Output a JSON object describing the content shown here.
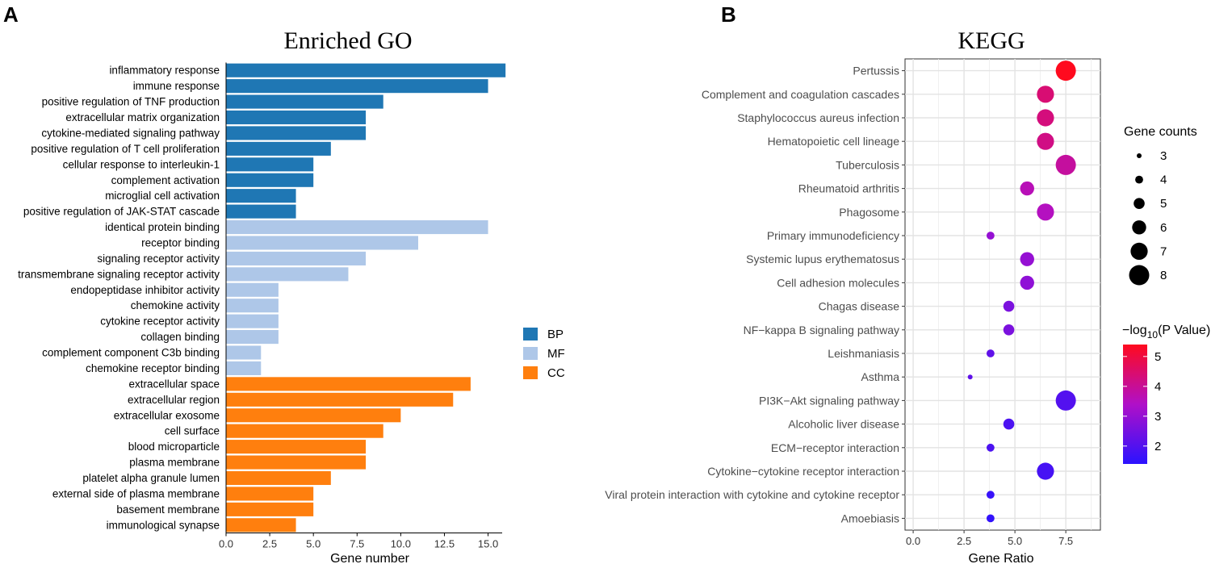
{
  "panels": {
    "a_label": "A",
    "b_label": "B"
  },
  "chart_data": [
    {
      "type": "bar",
      "orientation": "horizontal",
      "title": "Enriched GO",
      "xlabel": "Gene number",
      "ylabel": "",
      "xlim": [
        0,
        16.5
      ],
      "xticks": [
        0,
        2.5,
        5,
        7.5,
        10,
        12.5,
        15
      ],
      "xtick_labels": [
        "0.0",
        "2.5",
        "5.0",
        "7.5",
        "10.0",
        "12.5",
        "15.0"
      ],
      "legend": {
        "position": "right",
        "entries": [
          {
            "name": "BP",
            "color": "#1f77b4"
          },
          {
            "name": "MF",
            "color": "#aec7e8"
          },
          {
            "name": "CC",
            "color": "#ff7f0e"
          }
        ]
      },
      "categories": [
        "inflammatory response",
        "immune response",
        "positive regulation of TNF production",
        "extracellular matrix organization",
        "cytokine-mediated signaling pathway",
        "positive regulation of T cell proliferation",
        "cellular response to interleukin-1",
        "complement activation",
        "microglial cell activation",
        "positive regulation of JAK-STAT cascade",
        "identical protein binding",
        "receptor binding",
        "signaling receptor activity",
        "transmembrane signaling receptor activity",
        "endopeptidase inhibitor activity",
        "chemokine activity",
        "cytokine receptor activity",
        "collagen binding",
        "complement component C3b binding",
        "chemokine receptor binding",
        "extracellular space",
        "extracellular region",
        "extracellular exosome",
        "cell surface",
        "blood microparticle",
        "plasma membrane",
        "platelet alpha granule lumen",
        "external side of plasma membrane",
        "basement membrane",
        "immunological synapse"
      ],
      "values": [
        16,
        15,
        9,
        8,
        8,
        6,
        5,
        5,
        4,
        4,
        15,
        11,
        8,
        7,
        3,
        3,
        3,
        3,
        2,
        2,
        14,
        13,
        10,
        9,
        8,
        8,
        6,
        5,
        5,
        4
      ],
      "groups": [
        "BP",
        "BP",
        "BP",
        "BP",
        "BP",
        "BP",
        "BP",
        "BP",
        "BP",
        "BP",
        "MF",
        "MF",
        "MF",
        "MF",
        "MF",
        "MF",
        "MF",
        "MF",
        "MF",
        "MF",
        "CC",
        "CC",
        "CC",
        "CC",
        "CC",
        "CC",
        "CC",
        "CC",
        "CC",
        "CC"
      ]
    },
    {
      "type": "scatter",
      "subtype": "dot",
      "title": "KEGG",
      "xlabel": "Gene Ratio",
      "ylabel": "",
      "xlim": [
        -0.4,
        9.2
      ],
      "xticks": [
        0,
        2.5,
        5,
        7.5
      ],
      "xtick_labels": [
        "0.0",
        "2.5",
        "5.0",
        "7.5"
      ],
      "grid": true,
      "categories": [
        "Pertussis",
        "Complement and coagulation cascades",
        "Staphylococcus aureus infection",
        "Hematopoietic cell lineage",
        "Tuberculosis",
        "Rheumatoid arthritis",
        "Phagosome",
        "Primary immunodeficiency",
        "Systemic lupus erythematosus",
        "Cell adhesion molecules",
        "Chagas disease",
        "NF−kappa B signaling pathway",
        "Leishmaniasis",
        "Asthma",
        "PI3K−Akt signaling pathway",
        "Alcoholic liver disease",
        "ECM−receptor interaction",
        "Cytokine−cytokine receptor interaction",
        "Viral protein interaction with cytokine and cytokine receptor",
        "Amoebiasis"
      ],
      "gene_ratio": [
        7.5,
        6.5,
        6.5,
        6.5,
        7.5,
        5.6,
        6.5,
        3.8,
        5.6,
        5.6,
        4.7,
        4.7,
        3.8,
        2.8,
        7.5,
        4.7,
        3.8,
        6.5,
        3.8,
        3.8
      ],
      "gene_counts": [
        8,
        7,
        7,
        7,
        8,
        6,
        7,
        4,
        6,
        6,
        5,
        5,
        4,
        3,
        8,
        5,
        4,
        7,
        4,
        4
      ],
      "neg_log10_p": [
        5.4,
        4.4,
        4.3,
        4.2,
        3.9,
        3.6,
        3.5,
        3.0,
        3.0,
        2.9,
        2.6,
        2.6,
        2.2,
        2.2,
        2.0,
        1.9,
        1.9,
        1.8,
        1.6,
        1.5
      ],
      "size_legend": {
        "title": "Gene counts",
        "values": [
          3,
          4,
          5,
          6,
          7,
          8
        ],
        "labels": [
          "3",
          "4",
          "5",
          "6",
          "7",
          "8"
        ]
      },
      "color_legend": {
        "title_prefix": "−log",
        "title_sub": "10",
        "title_suffix": "(P Value)",
        "range": [
          1.4,
          5.4
        ],
        "ticks": [
          2,
          3,
          4,
          5
        ],
        "tick_labels": [
          "2",
          "3",
          "4",
          "5"
        ],
        "low_color": "#2b12ff",
        "mid_color": "#b010c8",
        "high_color": "#ff0a1e"
      }
    }
  ]
}
